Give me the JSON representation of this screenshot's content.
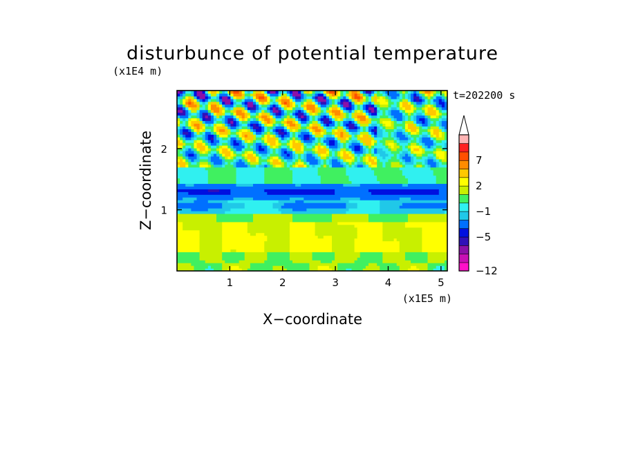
{
  "chart_data": {
    "type": "heatmap",
    "title": "disturbunce of potential temperature",
    "time_label": "t=202200 s",
    "xlabel": "X−coordinate",
    "ylabel": "Z−coordinate",
    "x_unit_label": "(x1E5 m)",
    "y_unit_label": "(x1E4 m)",
    "xlim": [
      0,
      5.12
    ],
    "ylim": [
      0,
      2.95
    ],
    "x_ticks": [
      1,
      2,
      3,
      4,
      5
    ],
    "x_tick_labels": [
      "1",
      "2",
      "3",
      "4",
      "5"
    ],
    "y_ticks": [
      1,
      2
    ],
    "y_tick_labels": [
      "1",
      "2"
    ],
    "colorbar": {
      "levels": [
        -12,
        -10,
        -8,
        -6,
        -5,
        -4,
        -2,
        -1,
        0,
        1,
        2,
        3,
        5,
        7,
        8,
        10
      ],
      "colors": [
        "#ff10c8",
        "#c810b4",
        "#8c10a8",
        "#3010b8",
        "#0010e0",
        "#0070ff",
        "#20c8e8",
        "#30f0f0",
        "#40f060",
        "#c8f000",
        "#ffff00",
        "#ffc800",
        "#ff8c00",
        "#ff5000",
        "#ff2020",
        "#ffb4b4"
      ],
      "tick_values": [
        7,
        2,
        -1,
        -5,
        -12
      ],
      "tick_labels": [
        "7",
        "2",
        "−1",
        "−5",
        "−12"
      ],
      "extend": "max"
    }
  }
}
